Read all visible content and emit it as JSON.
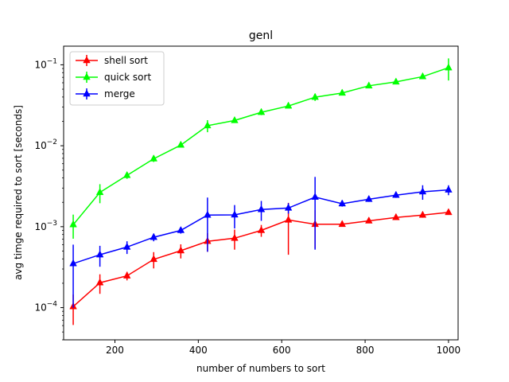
{
  "chart_data": {
    "type": "line",
    "title": "genl",
    "xlabel": "number of numbers to sort",
    "ylabel": "avg timge required to sort  [seconds]",
    "xlim": [
      77,
      1023
    ],
    "ylim": [
      4e-05,
      0.17
    ],
    "yscale": "log",
    "grid": false,
    "legend_position": "top-left",
    "x_ticks": [
      200,
      400,
      600,
      800,
      1000
    ],
    "y_ticks": [
      {
        "value": 0.0001,
        "base": "10",
        "exp": "−4"
      },
      {
        "value": 0.001,
        "base": "10",
        "exp": "−3"
      },
      {
        "value": 0.01,
        "base": "10",
        "exp": "−2"
      },
      {
        "value": 0.1,
        "base": "10",
        "exp": "−1"
      }
    ],
    "x": [
      100,
      164,
      229,
      293,
      358,
      422,
      487,
      551,
      616,
      680,
      745,
      809,
      874,
      938,
      1000
    ],
    "series": [
      {
        "name": "shell sort",
        "color": "#ff0000",
        "marker": "triangle",
        "values": [
          0.000103,
          0.000203,
          0.000247,
          0.000395,
          0.000505,
          0.00066,
          0.00072,
          0.0009,
          0.00121,
          0.00107,
          0.00107,
          0.00118,
          0.0013,
          0.00139,
          0.0015
        ],
        "errors": [
          4.2e-05,
          5.5e-05,
          3e-05,
          9e-05,
          0.0001,
          0.00017,
          0.0002,
          0.00015,
          0.00076,
          0.00053,
          6e-05,
          6e-05,
          8e-05,
          0.0001,
          9e-05
        ]
      },
      {
        "name": "quick sort",
        "color": "#00ff00",
        "marker": "triangle",
        "values": [
          0.00106,
          0.00265,
          0.0043,
          0.0069,
          0.0102,
          0.0177,
          0.0205,
          0.0259,
          0.031,
          0.0398,
          0.0448,
          0.055,
          0.0615,
          0.0715,
          0.092
        ],
        "errors": [
          0.00035,
          0.0007,
          0.0004,
          0.0006,
          0.0007,
          0.003,
          0.0012,
          0.002,
          0.002,
          0.004,
          0.0025,
          0.003,
          0.003,
          0.004,
          0.028
        ]
      },
      {
        "name": "merge",
        "color": "#0000ff",
        "marker": "triangle",
        "values": [
          0.00035,
          0.00045,
          0.00056,
          0.00074,
          0.0009,
          0.00139,
          0.0014,
          0.00163,
          0.0017,
          0.00232,
          0.00192,
          0.00218,
          0.00245,
          0.0027,
          0.00285
        ],
        "errors": [
          0.00025,
          0.00013,
          0.0001,
          8e-05,
          8e-05,
          0.0009,
          0.00045,
          0.00045,
          0.00025,
          0.0018,
          0.00015,
          0.00015,
          0.00018,
          0.00055,
          0.0004
        ]
      }
    ]
  }
}
